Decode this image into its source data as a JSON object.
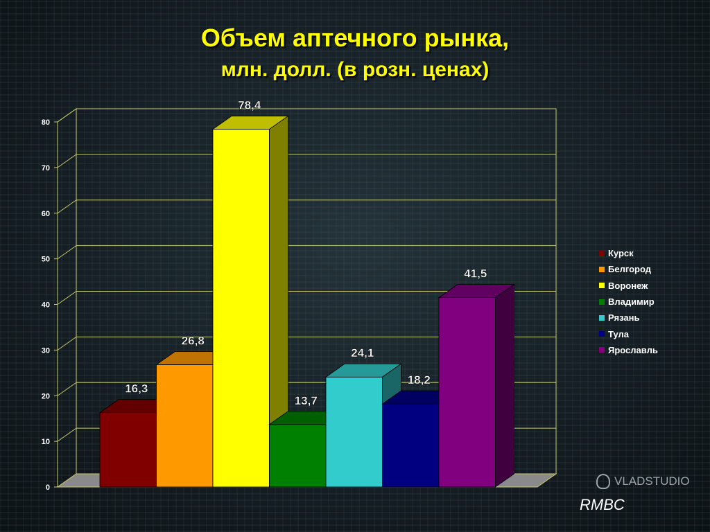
{
  "title": {
    "line1": "Объем аптечного рынка,",
    "line2": "млн. долл. (в розн. ценах)"
  },
  "watermark_text": "VLADSTUDIO",
  "footer_note": "RMBC",
  "chart_data": {
    "type": "bar",
    "title": "Объем аптечного рынка, млн. долл. (в розн. ценах)",
    "xlabel": "",
    "ylabel": "",
    "ylim": [
      0,
      80
    ],
    "yticks": [
      0,
      10,
      20,
      30,
      40,
      50,
      60,
      70,
      80
    ],
    "grid": true,
    "legend_position": "right",
    "series": [
      {
        "name": "Курск",
        "value": 16.3,
        "label": "16,3",
        "color": "#800000"
      },
      {
        "name": "Белгород",
        "value": 26.8,
        "label": "26,8",
        "color": "#ff9900"
      },
      {
        "name": "Воронеж",
        "value": 78.4,
        "label": "78,4",
        "color": "#ffff00"
      },
      {
        "name": "Владимир",
        "value": 13.7,
        "label": "13,7",
        "color": "#008000"
      },
      {
        "name": "Рязань",
        "value": 24.1,
        "label": "24,1",
        "color": "#33cccc"
      },
      {
        "name": "Тула",
        "value": 18.2,
        "label": "18,2",
        "color": "#000080"
      },
      {
        "name": "Ярославль",
        "value": 41.5,
        "label": "41,5",
        "color": "#800080"
      }
    ]
  }
}
